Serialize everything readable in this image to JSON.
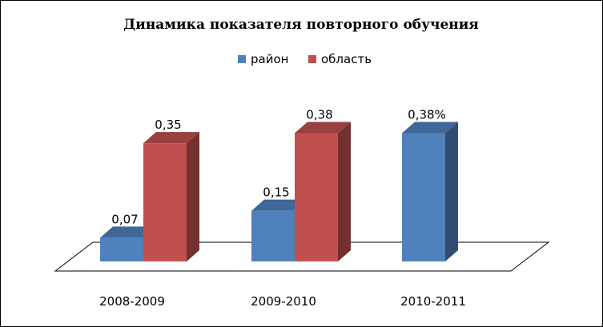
{
  "chart_data": {
    "type": "bar",
    "title": "Динамика показателя повторного обучения",
    "xlabel": "",
    "ylabel": "",
    "categories": [
      "2008-2009",
      "2009-2010",
      "2010-2011"
    ],
    "series": [
      {
        "name": "район",
        "color": "#4f81bd",
        "values": [
          0.07,
          0.15,
          0.38
        ],
        "labels": [
          "0,07",
          "0,15",
          "0,38%"
        ]
      },
      {
        "name": "область",
        "color": "#c0504d",
        "values": [
          0.35,
          0.38,
          null
        ],
        "labels": [
          "0,35",
          "0,38",
          ""
        ]
      }
    ],
    "ylim": [
      0,
      0.4
    ],
    "grid": false,
    "legend_position": "top",
    "style": "3d-clustered-column"
  }
}
